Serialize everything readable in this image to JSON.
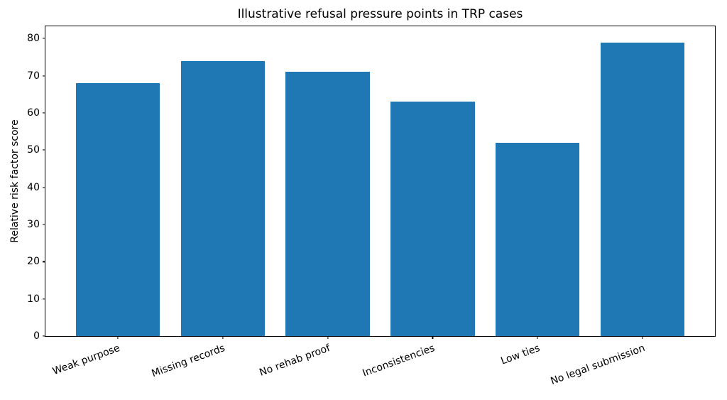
{
  "figure": {
    "background_color": "#ffffff",
    "text_color": "#000000"
  },
  "chart_data": {
    "type": "bar",
    "title": "Illustrative refusal pressure points in TRP cases",
    "xlabel": "",
    "ylabel": "Relative risk factor score",
    "categories": [
      "Weak purpose",
      "Missing records",
      "No rehab proof",
      "Inconsistencies",
      "Low ties",
      "No legal submission"
    ],
    "values": [
      68,
      74,
      71,
      63,
      52,
      79
    ],
    "bar_color": "#1f77b4",
    "ylim": [
      0,
      83.3
    ],
    "yticks": [
      0,
      10,
      20,
      30,
      40,
      50,
      60,
      70,
      80
    ],
    "xlim": [
      -0.69,
      5.69
    ],
    "bar_width": 0.8,
    "xtick_rotation_deg": 20,
    "grid": false,
    "legend": null
  }
}
